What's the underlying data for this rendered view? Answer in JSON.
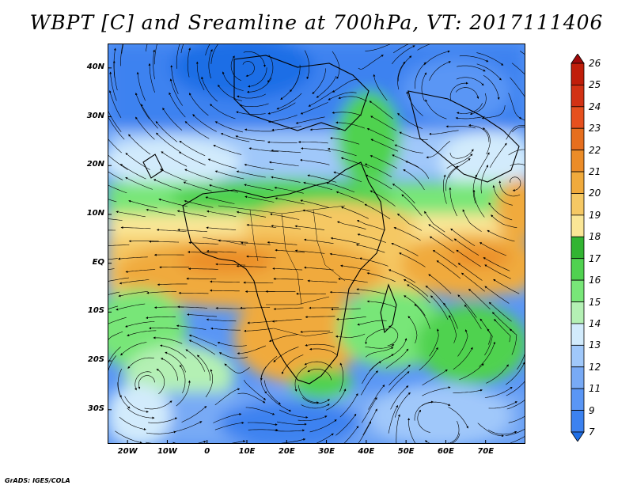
{
  "title": "WBPT [C] and Sreamline at 700hPa, VT: 2017111406",
  "footer": "GrADS: IGES/COLA",
  "map": {
    "lon_range": [
      -25,
      80
    ],
    "lat_range": [
      -37,
      45
    ],
    "lat_ticks": [
      {
        "lat": 40,
        "label": "40N"
      },
      {
        "lat": 30,
        "label": "30N"
      },
      {
        "lat": 20,
        "label": "20N"
      },
      {
        "lat": 10,
        "label": "10N"
      },
      {
        "lat": 0,
        "label": "EQ"
      },
      {
        "lat": -10,
        "label": "10S"
      },
      {
        "lat": -20,
        "label": "20S"
      },
      {
        "lat": -30,
        "label": "30S"
      }
    ],
    "lon_ticks": [
      {
        "lon": -20,
        "label": "20W"
      },
      {
        "lon": -10,
        "label": "10W"
      },
      {
        "lon": 0,
        "label": "0"
      },
      {
        "lon": 10,
        "label": "10E"
      },
      {
        "lon": 20,
        "label": "20E"
      },
      {
        "lon": 30,
        "label": "30E"
      },
      {
        "lon": 40,
        "label": "40E"
      },
      {
        "lon": 50,
        "label": "50E"
      },
      {
        "lon": 60,
        "label": "60E"
      },
      {
        "lon": 70,
        "label": "70E"
      }
    ]
  },
  "colorbar": {
    "levels": [
      "7",
      "9",
      "11",
      "12",
      "13",
      "14",
      "15",
      "16",
      "17",
      "18",
      "19",
      "20",
      "21",
      "22",
      "23",
      "24",
      "25",
      "26"
    ],
    "colors": [
      "#1e6ee6",
      "#3c82f0",
      "#5a96f5",
      "#78aaf5",
      "#a0c8fa",
      "#d2ebfc",
      "#b4f0b4",
      "#78e678",
      "#50d250",
      "#32b432",
      "#fae696",
      "#f5c864",
      "#f0aa3c",
      "#eb8c28",
      "#e66e1e",
      "#e6501e",
      "#d23214",
      "#c01e0a",
      "#a00a0a"
    ]
  }
}
